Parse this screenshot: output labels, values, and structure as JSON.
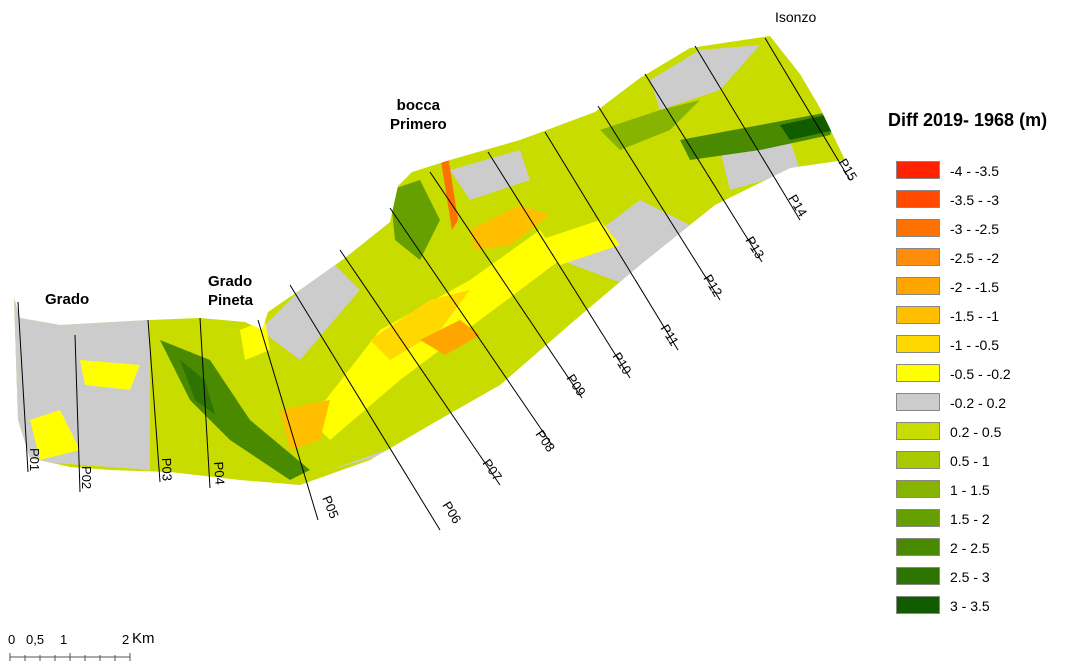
{
  "places": {
    "grado": "Grado",
    "grado_pineta": "Grado\nPineta",
    "bocca_primero": "bocca\nPrimero",
    "isonzo": "Isonzo"
  },
  "profiles": [
    "P01",
    "P02",
    "P03",
    "P04",
    "P05",
    "P06",
    "P07",
    "P08",
    "P09",
    "P10",
    "P11",
    "P12",
    "P13",
    "P14",
    "P15"
  ],
  "legend": {
    "title": "Diff 2019- 1968 (m)",
    "items": [
      {
        "label": "-4 - -3.5",
        "color": "#ff2200"
      },
      {
        "label": "-3.5 - -3",
        "color": "#ff4a00"
      },
      {
        "label": "-3 - -2.5",
        "color": "#ff7200"
      },
      {
        "label": "-2.5 - -2",
        "color": "#ff8c0a"
      },
      {
        "label": "-2 - -1.5",
        "color": "#ffa500"
      },
      {
        "label": "-1.5 - -1",
        "color": "#ffbe00"
      },
      {
        "label": "-1 - -0.5",
        "color": "#ffd800"
      },
      {
        "label": "-0.5 - -0.2",
        "color": "#ffff00"
      },
      {
        "label": "-0.2 - 0.2",
        "color": "#cccccc"
      },
      {
        "label": "0.2 - 0.5",
        "color": "#c8dc00"
      },
      {
        "label": "0.5 - 1",
        "color": "#a8c800"
      },
      {
        "label": "1 - 1.5",
        "color": "#86b400"
      },
      {
        "label": "1.5 - 2",
        "color": "#66a000"
      },
      {
        "label": "2 - 2.5",
        "color": "#4a8a00"
      },
      {
        "label": "2.5 - 3",
        "color": "#2e7400"
      },
      {
        "label": "3 - 3.5",
        "color": "#125c00"
      }
    ]
  },
  "scale_bar": {
    "ticks": [
      "0",
      "0,5",
      "1",
      "2"
    ],
    "unit": "Km"
  }
}
